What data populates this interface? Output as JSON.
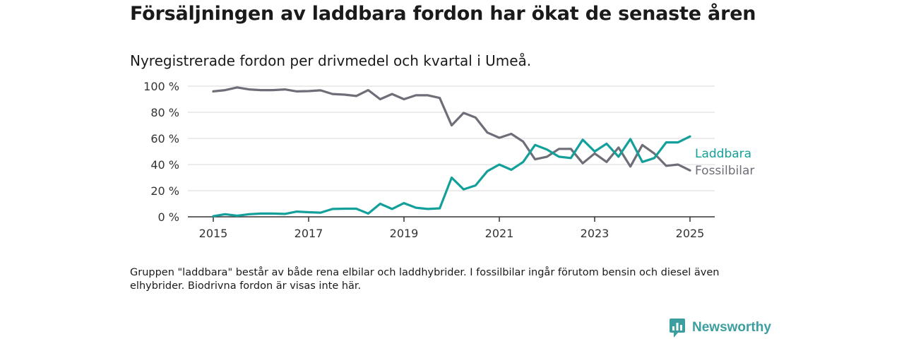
{
  "title": "Försäljningen av laddbara fordon har ökat de senaste åren",
  "subtitle": "Nyregistrerade fordon per drivmedel och kvartal i Umeå.",
  "note": "Gruppen \"laddbara\" består av både rena elbilar och laddhybrider. I fossilbilar ingår förutom bensin och diesel även elhybrider. Biodrivna fordon är visas inte här.",
  "brand": {
    "name": "Newsworthy",
    "icon": "newsworthy-logo-icon",
    "color": "#3d9ea0"
  },
  "chart_data": {
    "type": "line",
    "xlim": [
      2014.8,
      2025.5
    ],
    "ylim": [
      0,
      100
    ],
    "x_ticks": [
      2015,
      2017,
      2019,
      2021,
      2023,
      2025
    ],
    "x_tick_labels": [
      "2015",
      "2017",
      "2019",
      "2021",
      "2023",
      "2025"
    ],
    "y_ticks": [
      0,
      20,
      40,
      60,
      80,
      100
    ],
    "y_tick_labels": [
      "0 %",
      "20 %",
      "40 %",
      "60 %",
      "80 %",
      "100 %"
    ],
    "grid": true,
    "legend": "direct labels at line ends (right)",
    "x": [
      2015.0,
      2015.25,
      2015.5,
      2015.75,
      2016.0,
      2016.25,
      2016.5,
      2016.75,
      2017.0,
      2017.25,
      2017.5,
      2017.75,
      2018.0,
      2018.25,
      2018.5,
      2018.75,
      2019.0,
      2019.25,
      2019.5,
      2019.75,
      2020.0,
      2020.25,
      2020.5,
      2020.75,
      2021.0,
      2021.25,
      2021.5,
      2021.75,
      2022.0,
      2022.25,
      2022.5,
      2022.75,
      2023.0,
      2023.25,
      2023.5,
      2023.75,
      2024.0,
      2024.25,
      2024.5,
      2024.75,
      2025.0
    ],
    "series": [
      {
        "name": "Laddbara",
        "color": "#13a09a",
        "values": [
          0.5,
          2,
          0.8,
          2,
          2.5,
          2.5,
          2.2,
          4,
          3.5,
          3.2,
          6,
          6.2,
          6.2,
          2.5,
          10,
          6,
          10.5,
          7,
          6,
          6.5,
          30,
          21,
          24,
          35,
          40,
          36,
          42,
          55,
          51.5,
          46,
          45,
          59,
          50,
          56,
          46,
          59.5,
          42,
          45,
          57,
          57,
          61.5
        ]
      },
      {
        "name": "Fossilbilar",
        "color": "#6e6e78",
        "values": [
          96,
          97,
          99,
          97.5,
          97,
          97,
          97.5,
          96,
          96.2,
          96.8,
          94,
          93.5,
          92.5,
          97,
          90,
          94,
          90,
          93,
          93,
          91,
          70,
          79.5,
          76,
          64.5,
          60.5,
          63.5,
          57.5,
          44,
          46,
          52,
          52,
          41,
          48.5,
          42,
          53,
          38.5,
          55,
          48.5,
          39,
          40,
          35.5
        ]
      }
    ]
  }
}
